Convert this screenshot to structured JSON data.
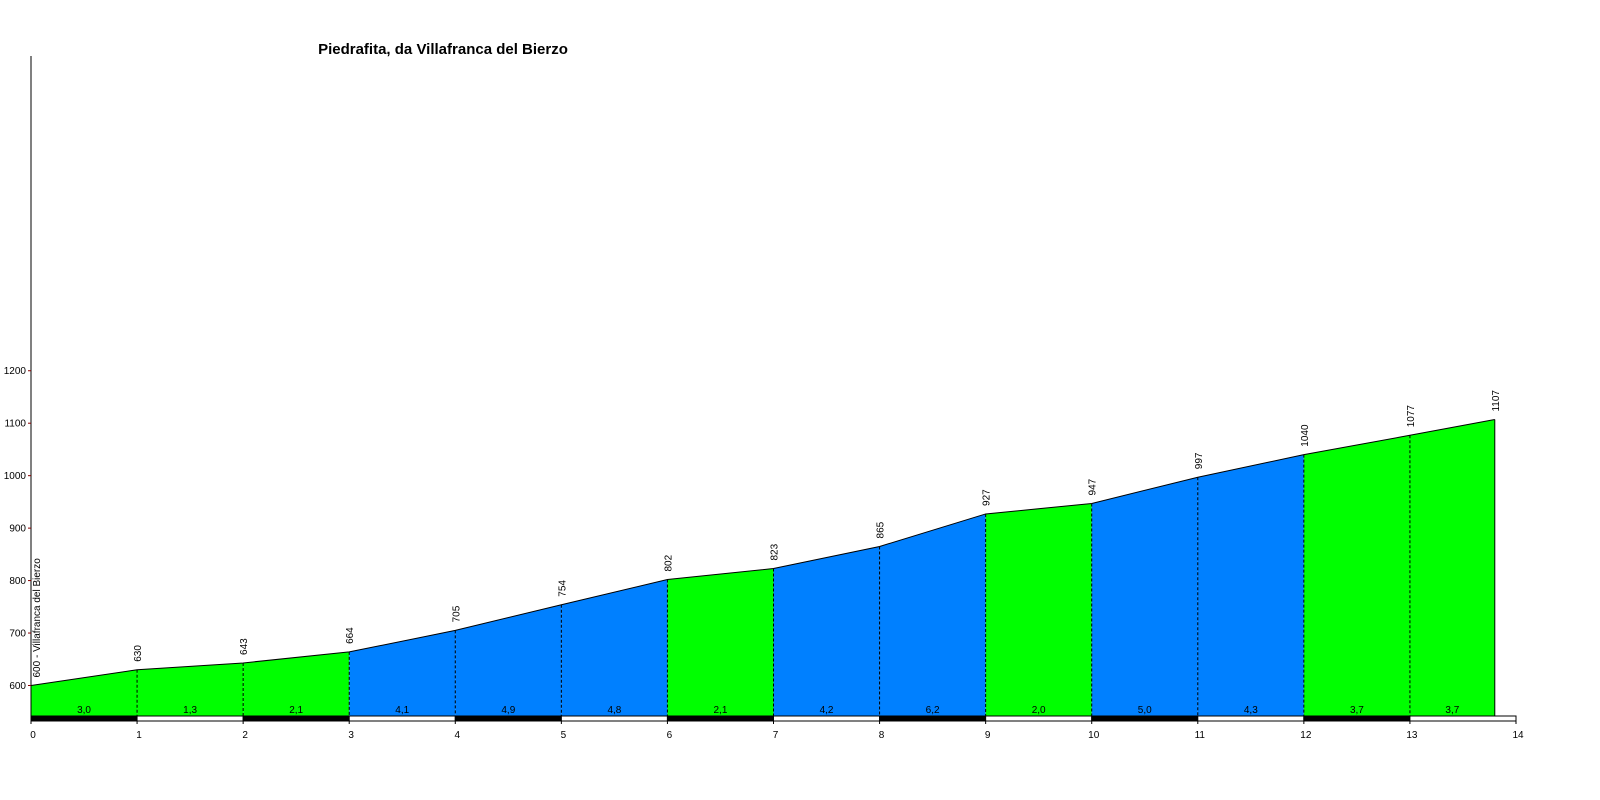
{
  "chart_data": {
    "type": "area",
    "title": "Piedrafita, da Villafranca del Bierzo",
    "start_label": "600 - Villafranca del Bierzo",
    "x_ticks": [
      "0",
      "1",
      "2",
      "3",
      "4",
      "5",
      "6",
      "7",
      "8",
      "9",
      "10",
      "11",
      "12",
      "13",
      "14"
    ],
    "y_ticks": [
      "600",
      "700",
      "800",
      "900",
      "1000",
      "1100",
      "1200"
    ],
    "xlim": [
      0,
      14
    ],
    "ylim": [
      570,
      1200
    ],
    "x": [
      0,
      1,
      2,
      3,
      4,
      5,
      6,
      7,
      8,
      9,
      10,
      11,
      12,
      13,
      13.8
    ],
    "elevations": [
      600,
      630,
      643,
      664,
      705,
      754,
      802,
      823,
      865,
      927,
      947,
      997,
      1040,
      1077,
      1107
    ],
    "elevation_labels": [
      "630",
      "643",
      "664",
      "705",
      "754",
      "802",
      "823",
      "865",
      "927",
      "947",
      "997",
      "1040",
      "1077",
      "1107"
    ],
    "gradients": [
      "3,0",
      "1,3",
      "2,1",
      "4,1",
      "4,9",
      "4,8",
      "2,1",
      "4,2",
      "6,2",
      "2,0",
      "5,0",
      "4,3",
      "3,7",
      "3,7"
    ],
    "segment_colors": [
      "#00ff00",
      "#00ff00",
      "#00ff00",
      "#0080ff",
      "#0080ff",
      "#0080ff",
      "#00ff00",
      "#0080ff",
      "#0080ff",
      "#00ff00",
      "#0080ff",
      "#0080ff",
      "#00ff00",
      "#00ff00"
    ],
    "axis_tick_color": "#8b0000",
    "grid": false,
    "legend": "none"
  }
}
